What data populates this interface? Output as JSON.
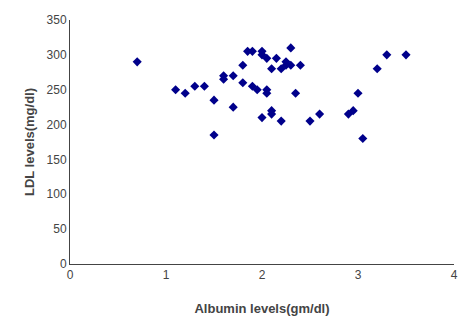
{
  "chart_data": {
    "type": "scatter",
    "x": [
      0.7,
      1.1,
      1.2,
      1.3,
      1.4,
      1.5,
      1.5,
      1.6,
      1.6,
      1.7,
      1.7,
      1.8,
      1.8,
      1.85,
      1.9,
      1.9,
      1.95,
      2.0,
      2.0,
      2.0,
      2.05,
      2.05,
      2.05,
      2.1,
      2.1,
      2.1,
      2.15,
      2.2,
      2.2,
      2.25,
      2.25,
      2.3,
      2.3,
      2.35,
      2.4,
      2.5,
      2.6,
      2.9,
      2.95,
      3.0,
      3.05,
      3.2,
      3.3,
      3.5
    ],
    "values": [
      290,
      250,
      245,
      255,
      255,
      185,
      235,
      265,
      270,
      225,
      270,
      285,
      260,
      305,
      305,
      255,
      250,
      305,
      300,
      210,
      295,
      245,
      250,
      220,
      215,
      280,
      295,
      205,
      280,
      285,
      290,
      310,
      285,
      245,
      285,
      205,
      215,
      215,
      220,
      245,
      180,
      280,
      300,
      300
    ],
    "color": "#00008B",
    "marker": "diamond",
    "xlabel": "Albumin levels(gm/dl)",
    "ylabel": "LDL levels(mg/dl)",
    "xlim": [
      0,
      4
    ],
    "ylim": [
      0,
      350
    ],
    "xticks": [
      0,
      1,
      2,
      3,
      4
    ],
    "yticks": [
      0,
      50,
      100,
      150,
      200,
      250,
      300,
      350
    ],
    "grid": false
  }
}
